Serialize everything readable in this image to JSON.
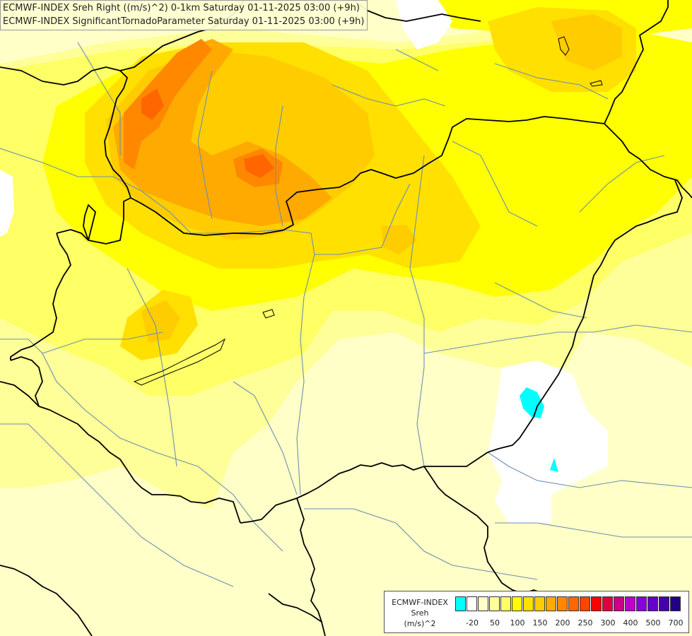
{
  "title_line_1": "ECMWF-INDEX Sreh Right ((m/s)^2) 0-1km Saturday 01-11-2025 03:00 (+9h)",
  "title_line_2": "ECMWF-INDEX SignificantTornadoParameter Saturday 01-11-2025 03:00 (+9h)",
  "legend": {
    "name_line_1": "ECMWF-INDEX",
    "name_line_2": "Sreh",
    "name_line_3": "(m/s)^2",
    "tick_labels": [
      "-20",
      "50",
      "100",
      "150",
      "200",
      "250",
      "300",
      "400",
      "500",
      "700"
    ],
    "swatch_colors": [
      "#00ffff",
      "#ffffff",
      "#ffffc8",
      "#ffff99",
      "#ffff66",
      "#ffff00",
      "#ffe000",
      "#ffcc00",
      "#ffaa00",
      "#ff8800",
      "#ff6600",
      "#ff4400",
      "#ff0000",
      "#e00040",
      "#cc0088",
      "#bb00cc",
      "#8800dd",
      "#6600cc",
      "#4400aa",
      "#220088"
    ]
  },
  "field_colors": {
    "pale": "#ffffc8",
    "light": "#ffff99",
    "mid": "#ffff66",
    "yellow": "#ffff00",
    "amber": "#ffe000",
    "gold": "#ffcc00",
    "orange": "#ffaa00",
    "deep_orange": "#ff8800",
    "red_orange": "#ff6600",
    "white": "#ffffff",
    "cyan": "#00ffff",
    "border": "#000000",
    "river": "#6f8fb0"
  }
}
